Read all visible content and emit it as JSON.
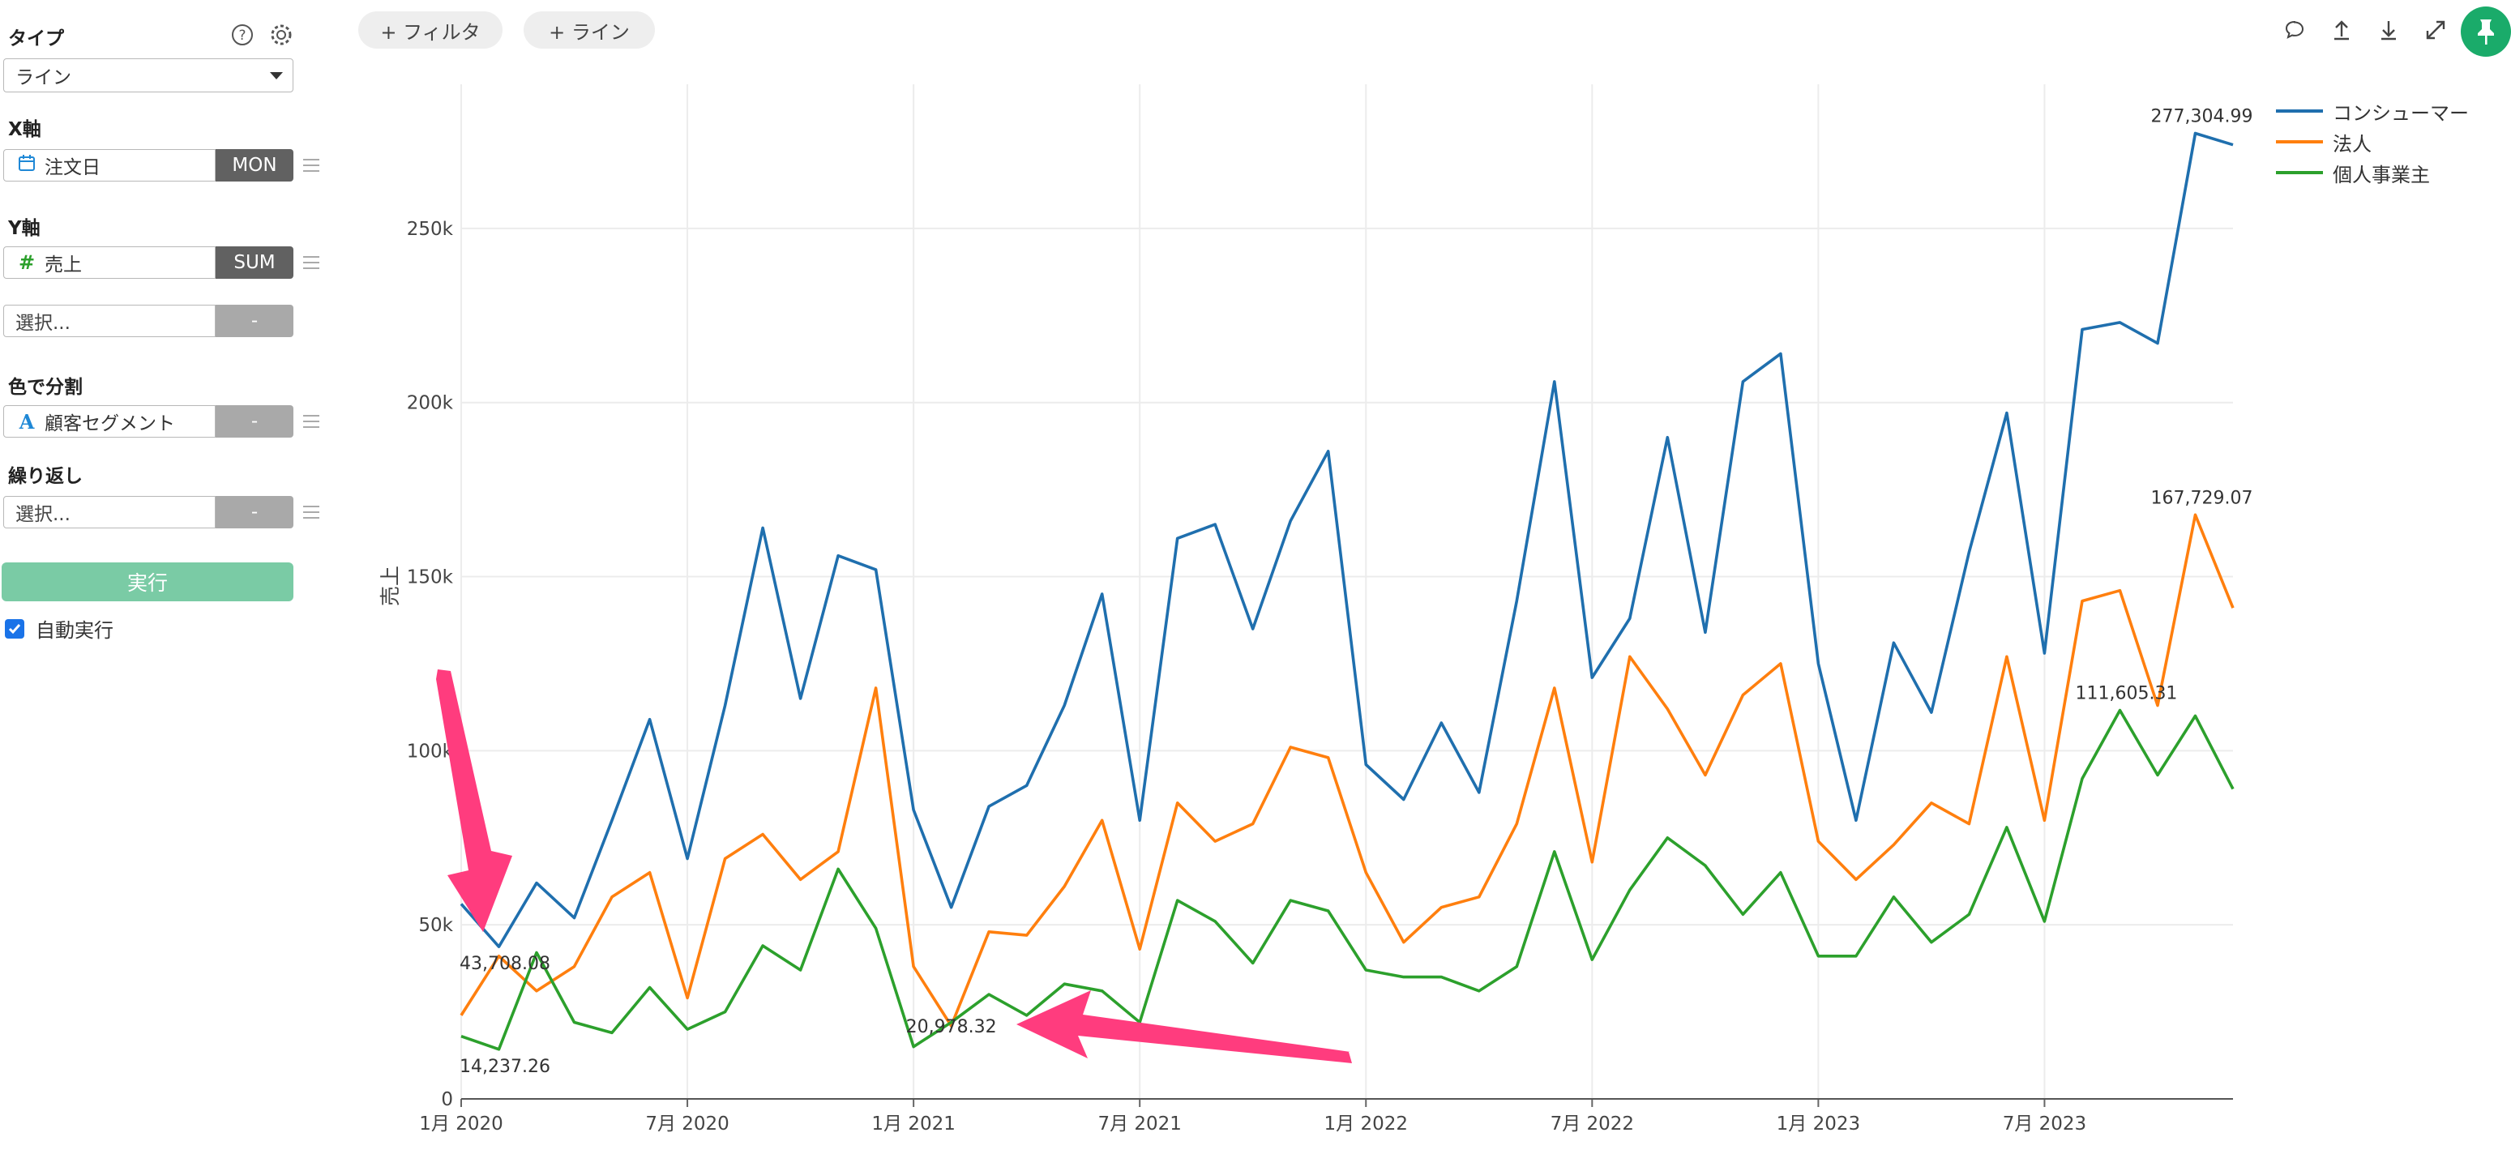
{
  "sidebar": {
    "type_label": "タイプ",
    "type_value": "ライン",
    "x_axis_label": "X軸",
    "x_field": "注文日",
    "x_agg": "MON",
    "y_axis_label": "Y軸",
    "y_field": "売上",
    "y_agg": "SUM",
    "y2_placeholder": "選択...",
    "y2_agg": "-",
    "color_label": "色で分割",
    "color_field": "顧客セグメント",
    "color_agg": "-",
    "repeat_label": "繰り返し",
    "repeat_placeholder": "選択...",
    "repeat_agg": "-",
    "run_label": "実行",
    "auto_run_label": "自動実行"
  },
  "topbar": {
    "filter_label": "+ フィルタ",
    "line_label": "+ ライン"
  },
  "colors": {
    "consumer": "#1f6fae",
    "corporate": "#ff7f0e",
    "home_office": "#2ca02c",
    "annotation_arrow": "#ff3c7e"
  },
  "chart_data": {
    "type": "line",
    "ylabel": "売上",
    "xlabel": "",
    "ylim": [
      0,
      290000
    ],
    "yticks": [
      0,
      50000,
      100000,
      150000,
      200000,
      250000
    ],
    "ytick_labels": [
      "0",
      "50k",
      "100k",
      "150k",
      "200k",
      "250k"
    ],
    "xtick_labels": [
      "1月 2020",
      "7月 2020",
      "1月 2021",
      "7月 2021",
      "1月 2022",
      "7月 2022",
      "1月 2023",
      "7月 2023"
    ],
    "xtick_month_index": [
      0,
      6,
      12,
      18,
      24,
      30,
      36,
      42
    ],
    "grid": true,
    "legend_position": "top-right",
    "series": [
      {
        "name": "コンシューマー",
        "color": "#1f6fae",
        "values": [
          56000,
          43708.08,
          62000,
          52000,
          80000,
          109000,
          69000,
          113000,
          164000,
          115000,
          156000,
          152000,
          83000,
          55000,
          84000,
          90000,
          113000,
          145000,
          80000,
          161000,
          165000,
          135000,
          166000,
          186000,
          96000,
          86000,
          108000,
          88000,
          143000,
          206000,
          121000,
          138000,
          190000,
          134000,
          206000,
          214000,
          125000,
          80000,
          131000,
          111000,
          157000,
          197000,
          128000,
          221000,
          223000,
          217000,
          277304.99,
          274000
        ]
      },
      {
        "name": "法人",
        "color": "#ff7f0e",
        "values": [
          24000,
          41000,
          31000,
          38000,
          58000,
          65000,
          29000,
          69000,
          76000,
          63000,
          71000,
          118000,
          38000,
          20978.32,
          48000,
          47000,
          61000,
          80000,
          43000,
          85000,
          74000,
          79000,
          101000,
          98000,
          65000,
          45000,
          55000,
          58000,
          79000,
          118000,
          68000,
          127000,
          112000,
          93000,
          116000,
          125000,
          74000,
          63000,
          73000,
          85000,
          79000,
          127000,
          80000,
          143000,
          146000,
          113000,
          167729.07,
          141000
        ]
      },
      {
        "name": "個人事業主",
        "color": "#2ca02c",
        "values": [
          18000,
          14237.26,
          42000,
          22000,
          19000,
          32000,
          20000,
          25000,
          44000,
          37000,
          66000,
          49000,
          15000,
          22000,
          30000,
          24000,
          33000,
          31000,
          22000,
          57000,
          51000,
          39000,
          57000,
          54000,
          37000,
          35000,
          35000,
          31000,
          38000,
          71000,
          40000,
          60000,
          75000,
          67000,
          53000,
          65000,
          41000,
          41000,
          58000,
          45000,
          53000,
          78000,
          51000,
          92000,
          111605.31,
          93000,
          110000,
          89000
        ]
      }
    ],
    "annotations": [
      {
        "series": 0,
        "index": 1,
        "text": "43,708.08"
      },
      {
        "series": 2,
        "index": 1,
        "text": "14,237.26"
      },
      {
        "series": 1,
        "index": 13,
        "text": "20,978.32"
      },
      {
        "series": 0,
        "index": 46,
        "text": "277,304.99"
      },
      {
        "series": 1,
        "index": 46,
        "text": "167,729.07"
      },
      {
        "series": 2,
        "index": 44,
        "text": "111,605.31"
      }
    ]
  }
}
